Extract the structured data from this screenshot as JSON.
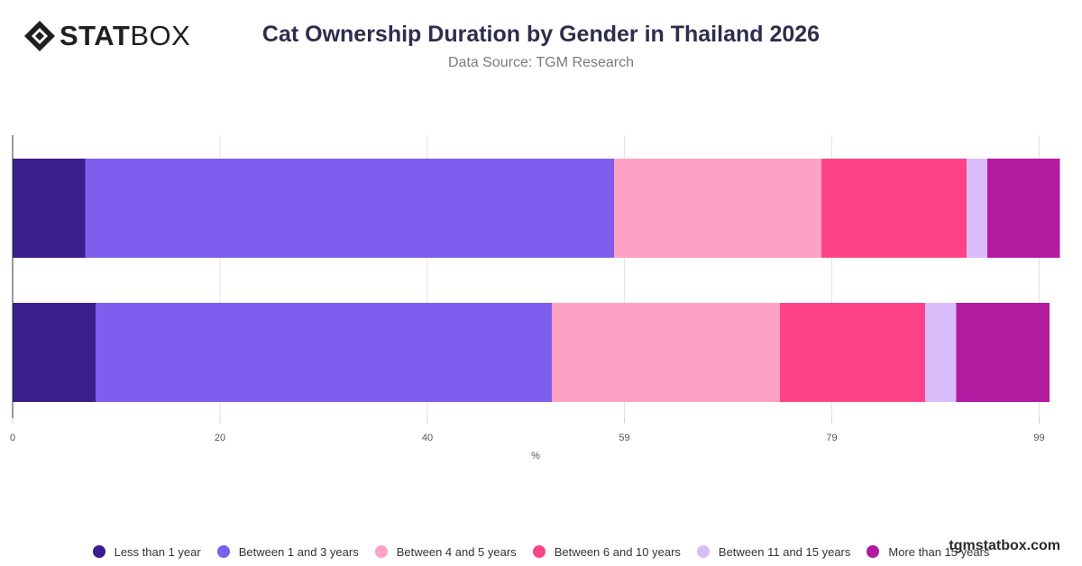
{
  "header": {
    "logo_bold": "STAT",
    "logo_light": "BOX",
    "title": "Cat Ownership Duration by Gender in Thailand 2026",
    "subtitle": "Data Source: TGM Research"
  },
  "footer": {
    "brand": "tgmstatbox.com"
  },
  "chart_data": {
    "type": "bar",
    "orientation": "horizontal",
    "stacked": true,
    "title": "Cat Ownership Duration by Gender in Thailand 2026",
    "subtitle": "Data Source: TGM Research",
    "xlabel": "%",
    "ylabel": "",
    "categories": [
      "",
      ""
    ],
    "xlim": [
      0,
      100
    ],
    "x_ticks": [
      0,
      20,
      40,
      59,
      79,
      99
    ],
    "grid": true,
    "legend_position": "bottom",
    "series": [
      {
        "name": "Less than 1 year",
        "color": "#3a1f8c",
        "values": [
          7,
          8
        ]
      },
      {
        "name": "Between 1 and 3 years",
        "color": "#7d5ded",
        "values": [
          51,
          44
        ]
      },
      {
        "name": "Between 4 and 5 years",
        "color": "#fca3c5",
        "values": [
          20,
          22
        ]
      },
      {
        "name": "Between 6 and 10 years",
        "color": "#fe4487",
        "values": [
          14,
          14
        ]
      },
      {
        "name": "Between 11 and 15 years",
        "color": "#d9bdfb",
        "values": [
          2,
          3
        ]
      },
      {
        "name": "More than 15 years",
        "color": "#b21aa0",
        "values": [
          7,
          9
        ]
      }
    ]
  }
}
